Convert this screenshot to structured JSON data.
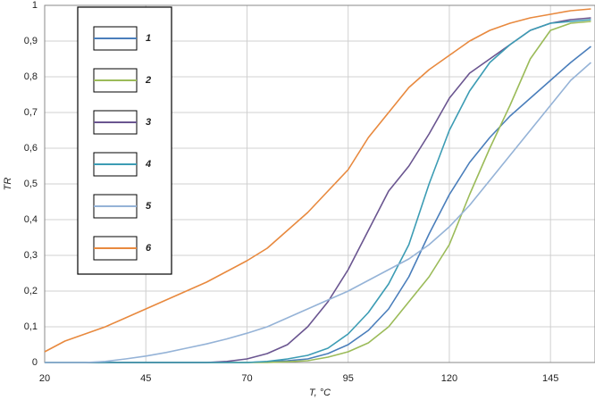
{
  "chart_data": {
    "type": "line",
    "x_label": "T, °C",
    "y_label": "TR",
    "x": [
      20,
      25,
      30,
      35,
      40,
      45,
      50,
      55,
      60,
      65,
      70,
      75,
      80,
      85,
      90,
      95,
      100,
      105,
      110,
      115,
      120,
      125,
      130,
      135,
      140,
      145,
      150,
      155
    ],
    "series": [
      {
        "name": "1",
        "color": "#4a7ebb",
        "values": [
          0,
          0,
          0,
          0,
          0,
          0,
          0,
          0,
          0,
          0,
          0,
          0.002,
          0.005,
          0.01,
          0.025,
          0.05,
          0.09,
          0.15,
          0.24,
          0.36,
          0.47,
          0.56,
          0.63,
          0.69,
          0.74,
          0.79,
          0.84,
          0.885
        ]
      },
      {
        "name": "2",
        "color": "#9bbb59",
        "values": [
          0,
          0,
          0,
          0,
          0,
          0,
          0,
          0,
          0,
          0,
          0,
          0,
          0.002,
          0.005,
          0.015,
          0.03,
          0.055,
          0.1,
          0.17,
          0.24,
          0.33,
          0.47,
          0.6,
          0.72,
          0.85,
          0.93,
          0.95,
          0.955
        ]
      },
      {
        "name": "3",
        "color": "#6a5590",
        "values": [
          0,
          0,
          0,
          0,
          0,
          0,
          0,
          0,
          0,
          0.003,
          0.01,
          0.025,
          0.05,
          0.1,
          0.17,
          0.26,
          0.37,
          0.48,
          0.55,
          0.64,
          0.74,
          0.81,
          0.85,
          0.89,
          0.93,
          0.95,
          0.96,
          0.965
        ]
      },
      {
        "name": "4",
        "color": "#3c9cb4",
        "values": [
          0,
          0,
          0,
          0,
          0,
          0,
          0,
          0,
          0,
          0,
          0,
          0.003,
          0.01,
          0.02,
          0.04,
          0.08,
          0.14,
          0.22,
          0.33,
          0.5,
          0.65,
          0.76,
          0.84,
          0.89,
          0.93,
          0.95,
          0.955,
          0.96
        ]
      },
      {
        "name": "5",
        "color": "#95b3d7",
        "values": [
          0,
          0,
          0,
          0.003,
          0.01,
          0.018,
          0.028,
          0.04,
          0.052,
          0.066,
          0.082,
          0.1,
          0.125,
          0.15,
          0.175,
          0.2,
          0.23,
          0.26,
          0.29,
          0.33,
          0.38,
          0.44,
          0.51,
          0.58,
          0.65,
          0.72,
          0.79,
          0.84
        ]
      },
      {
        "name": "6",
        "color": "#e8893e",
        "values": [
          0.03,
          0.06,
          0.08,
          0.1,
          0.125,
          0.15,
          0.175,
          0.2,
          0.225,
          0.255,
          0.285,
          0.32,
          0.37,
          0.42,
          0.48,
          0.54,
          0.63,
          0.7,
          0.77,
          0.82,
          0.86,
          0.9,
          0.93,
          0.95,
          0.965,
          0.975,
          0.985,
          0.99
        ]
      }
    ],
    "xlim": [
      20,
      156
    ],
    "xticks": [
      20,
      45,
      70,
      95,
      120,
      145
    ],
    "ylim": [
      0,
      1
    ],
    "yticks": [
      0,
      {
        "value": 0.1,
        "label": "0,1"
      },
      {
        "value": 0.2,
        "label": "0,2"
      },
      {
        "value": 0.3,
        "label": "0,3"
      },
      {
        "value": 0.4,
        "label": "0,4"
      },
      {
        "value": 0.5,
        "label": "0,5"
      },
      {
        "value": 0.6,
        "label": "0,6"
      },
      {
        "value": 0.7,
        "label": "0,7"
      },
      {
        "value": 0.8,
        "label": "0,8"
      },
      {
        "value": 0.9,
        "label": "0,9"
      },
      1
    ],
    "grid": true,
    "legend": "upper left"
  }
}
